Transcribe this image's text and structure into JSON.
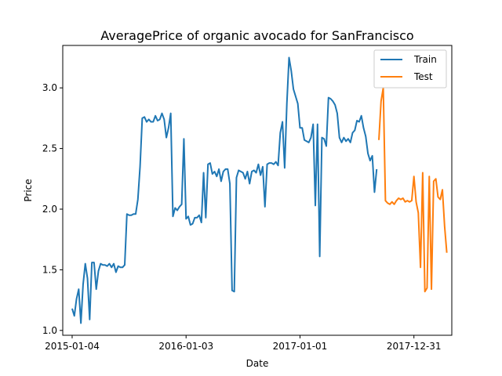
{
  "chart_data": {
    "type": "line",
    "title": "AveragePrice of organic avocado for SanFrancisco",
    "xlabel": "Date",
    "ylabel": "Price",
    "x_ticks": [
      "2015-01-04",
      "2016-01-03",
      "2017-01-01",
      "2017-12-31"
    ],
    "y_ticks": [
      "1.0",
      "1.5",
      "2.0",
      "2.5",
      "3.0"
    ],
    "ylim": [
      0.96,
      3.35
    ],
    "xlim": [
      "2014-12-05",
      "2018-05-01"
    ],
    "grid": false,
    "legend_position": "top-right",
    "series": [
      {
        "name": "Train",
        "color": "#1f77b4",
        "points": [
          [
            "2015-01-04",
            1.18
          ],
          [
            "2015-01-11",
            1.12
          ],
          [
            "2015-01-18",
            1.26
          ],
          [
            "2015-01-25",
            1.34
          ],
          [
            "2015-02-01",
            1.06
          ],
          [
            "2015-02-08",
            1.38
          ],
          [
            "2015-02-15",
            1.55
          ],
          [
            "2015-02-22",
            1.43
          ],
          [
            "2015-03-01",
            1.09
          ],
          [
            "2015-03-08",
            1.56
          ],
          [
            "2015-03-15",
            1.56
          ],
          [
            "2015-03-22",
            1.34
          ],
          [
            "2015-03-29",
            1.49
          ],
          [
            "2015-04-05",
            1.55
          ],
          [
            "2015-04-12",
            1.54
          ],
          [
            "2015-04-19",
            1.54
          ],
          [
            "2015-04-26",
            1.53
          ],
          [
            "2015-05-03",
            1.55
          ],
          [
            "2015-05-10",
            1.52
          ],
          [
            "2015-05-17",
            1.55
          ],
          [
            "2015-05-24",
            1.48
          ],
          [
            "2015-05-31",
            1.53
          ],
          [
            "2015-06-07",
            1.52
          ],
          [
            "2015-06-14",
            1.52
          ],
          [
            "2015-06-21",
            1.54
          ],
          [
            "2015-06-28",
            1.96
          ],
          [
            "2015-07-05",
            1.95
          ],
          [
            "2015-07-12",
            1.95
          ],
          [
            "2015-07-19",
            1.96
          ],
          [
            "2015-07-26",
            1.96
          ],
          [
            "2015-08-02",
            2.08
          ],
          [
            "2015-08-09",
            2.35
          ],
          [
            "2015-08-16",
            2.75
          ],
          [
            "2015-08-23",
            2.76
          ],
          [
            "2015-08-30",
            2.72
          ],
          [
            "2015-09-06",
            2.74
          ],
          [
            "2015-09-13",
            2.72
          ],
          [
            "2015-09-20",
            2.72
          ],
          [
            "2015-09-27",
            2.77
          ],
          [
            "2015-10-04",
            2.73
          ],
          [
            "2015-10-11",
            2.74
          ],
          [
            "2015-10-18",
            2.79
          ],
          [
            "2015-10-25",
            2.74
          ],
          [
            "2015-11-01",
            2.59
          ],
          [
            "2015-11-08",
            2.67
          ],
          [
            "2015-11-15",
            2.79
          ],
          [
            "2015-11-22",
            1.94
          ],
          [
            "2015-11-29",
            2.01
          ],
          [
            "2015-12-06",
            1.99
          ],
          [
            "2015-12-13",
            2.02
          ],
          [
            "2015-12-20",
            2.04
          ],
          [
            "2015-12-27",
            2.58
          ],
          [
            "2016-01-03",
            1.92
          ],
          [
            "2016-01-10",
            1.94
          ],
          [
            "2016-01-17",
            1.87
          ],
          [
            "2016-01-24",
            1.88
          ],
          [
            "2016-01-31",
            1.93
          ],
          [
            "2016-02-07",
            1.93
          ],
          [
            "2016-02-14",
            1.95
          ],
          [
            "2016-02-21",
            1.89
          ],
          [
            "2016-02-28",
            2.3
          ],
          [
            "2016-03-06",
            1.93
          ],
          [
            "2016-03-13",
            2.37
          ],
          [
            "2016-03-20",
            2.38
          ],
          [
            "2016-03-27",
            2.29
          ],
          [
            "2016-04-03",
            2.31
          ],
          [
            "2016-04-10",
            2.27
          ],
          [
            "2016-04-17",
            2.33
          ],
          [
            "2016-04-24",
            2.23
          ],
          [
            "2016-05-01",
            2.31
          ],
          [
            "2016-05-08",
            2.33
          ],
          [
            "2016-05-15",
            2.33
          ],
          [
            "2016-05-22",
            2.21
          ],
          [
            "2016-05-29",
            1.33
          ],
          [
            "2016-06-05",
            1.32
          ],
          [
            "2016-06-12",
            2.26
          ],
          [
            "2016-06-19",
            2.32
          ],
          [
            "2016-06-26",
            2.31
          ],
          [
            "2016-07-03",
            2.3
          ],
          [
            "2016-07-10",
            2.25
          ],
          [
            "2016-07-17",
            2.31
          ],
          [
            "2016-07-24",
            2.21
          ],
          [
            "2016-07-31",
            2.31
          ],
          [
            "2016-08-07",
            2.32
          ],
          [
            "2016-08-14",
            2.3
          ],
          [
            "2016-08-21",
            2.37
          ],
          [
            "2016-08-28",
            2.28
          ],
          [
            "2016-09-04",
            2.35
          ],
          [
            "2016-09-11",
            2.02
          ],
          [
            "2016-09-18",
            2.37
          ],
          [
            "2016-09-25",
            2.38
          ],
          [
            "2016-10-02",
            2.38
          ],
          [
            "2016-10-09",
            2.37
          ],
          [
            "2016-10-16",
            2.39
          ],
          [
            "2016-10-23",
            2.36
          ],
          [
            "2016-10-30",
            2.63
          ],
          [
            "2016-11-06",
            2.72
          ],
          [
            "2016-11-13",
            2.34
          ],
          [
            "2016-11-20",
            2.87
          ],
          [
            "2016-11-27",
            3.25
          ],
          [
            "2016-12-04",
            3.14
          ],
          [
            "2016-12-11",
            2.99
          ],
          [
            "2016-12-18",
            2.93
          ],
          [
            "2016-12-25",
            2.87
          ],
          [
            "2017-01-01",
            2.67
          ],
          [
            "2017-01-08",
            2.67
          ],
          [
            "2017-01-15",
            2.57
          ],
          [
            "2017-01-22",
            2.56
          ],
          [
            "2017-01-29",
            2.55
          ],
          [
            "2017-02-05",
            2.59
          ],
          [
            "2017-02-12",
            2.7
          ],
          [
            "2017-02-19",
            2.03
          ],
          [
            "2017-02-26",
            2.7
          ],
          [
            "2017-03-05",
            1.61
          ],
          [
            "2017-03-12",
            2.59
          ],
          [
            "2017-03-19",
            2.58
          ],
          [
            "2017-03-26",
            2.52
          ],
          [
            "2017-04-02",
            2.92
          ],
          [
            "2017-04-09",
            2.91
          ],
          [
            "2017-04-16",
            2.89
          ],
          [
            "2017-04-23",
            2.86
          ],
          [
            "2017-04-30",
            2.79
          ],
          [
            "2017-05-07",
            2.59
          ],
          [
            "2017-05-14",
            2.55
          ],
          [
            "2017-05-21",
            2.59
          ],
          [
            "2017-05-28",
            2.56
          ],
          [
            "2017-06-04",
            2.58
          ],
          [
            "2017-06-11",
            2.55
          ],
          [
            "2017-06-18",
            2.63
          ],
          [
            "2017-06-25",
            2.65
          ],
          [
            "2017-07-02",
            2.73
          ],
          [
            "2017-07-09",
            2.72
          ],
          [
            "2017-07-16",
            2.77
          ],
          [
            "2017-07-23",
            2.67
          ],
          [
            "2017-07-30",
            2.6
          ],
          [
            "2017-08-06",
            2.46
          ],
          [
            "2017-08-13",
            2.4
          ],
          [
            "2017-08-20",
            2.44
          ],
          [
            "2017-08-27",
            2.14
          ],
          [
            "2017-09-03",
            2.33
          ]
        ]
      },
      {
        "name": "Test",
        "color": "#ff7f0e",
        "points": [
          [
            "2017-09-10",
            2.57
          ],
          [
            "2017-09-17",
            2.89
          ],
          [
            "2017-09-24",
            3.0
          ],
          [
            "2017-10-01",
            2.07
          ],
          [
            "2017-10-08",
            2.05
          ],
          [
            "2017-10-15",
            2.04
          ],
          [
            "2017-10-22",
            2.06
          ],
          [
            "2017-10-29",
            2.04
          ],
          [
            "2017-11-05",
            2.07
          ],
          [
            "2017-11-12",
            2.09
          ],
          [
            "2017-11-19",
            2.08
          ],
          [
            "2017-11-26",
            2.09
          ],
          [
            "2017-12-03",
            2.06
          ],
          [
            "2017-12-10",
            2.07
          ],
          [
            "2017-12-17",
            2.06
          ],
          [
            "2017-12-24",
            2.07
          ],
          [
            "2017-12-31",
            2.27
          ],
          [
            "2018-01-07",
            2.06
          ],
          [
            "2018-01-14",
            1.97
          ],
          [
            "2018-01-21",
            1.52
          ],
          [
            "2018-01-28",
            2.3
          ],
          [
            "2018-02-04",
            1.32
          ],
          [
            "2018-02-11",
            1.35
          ],
          [
            "2018-02-18",
            2.27
          ],
          [
            "2018-02-25",
            1.34
          ],
          [
            "2018-03-04",
            2.23
          ],
          [
            "2018-03-11",
            2.25
          ],
          [
            "2018-03-18",
            2.1
          ],
          [
            "2018-03-25",
            2.08
          ],
          [
            "2018-04-01",
            2.16
          ],
          [
            "2018-04-08",
            1.86
          ],
          [
            "2018-04-15",
            1.64
          ]
        ]
      }
    ]
  }
}
